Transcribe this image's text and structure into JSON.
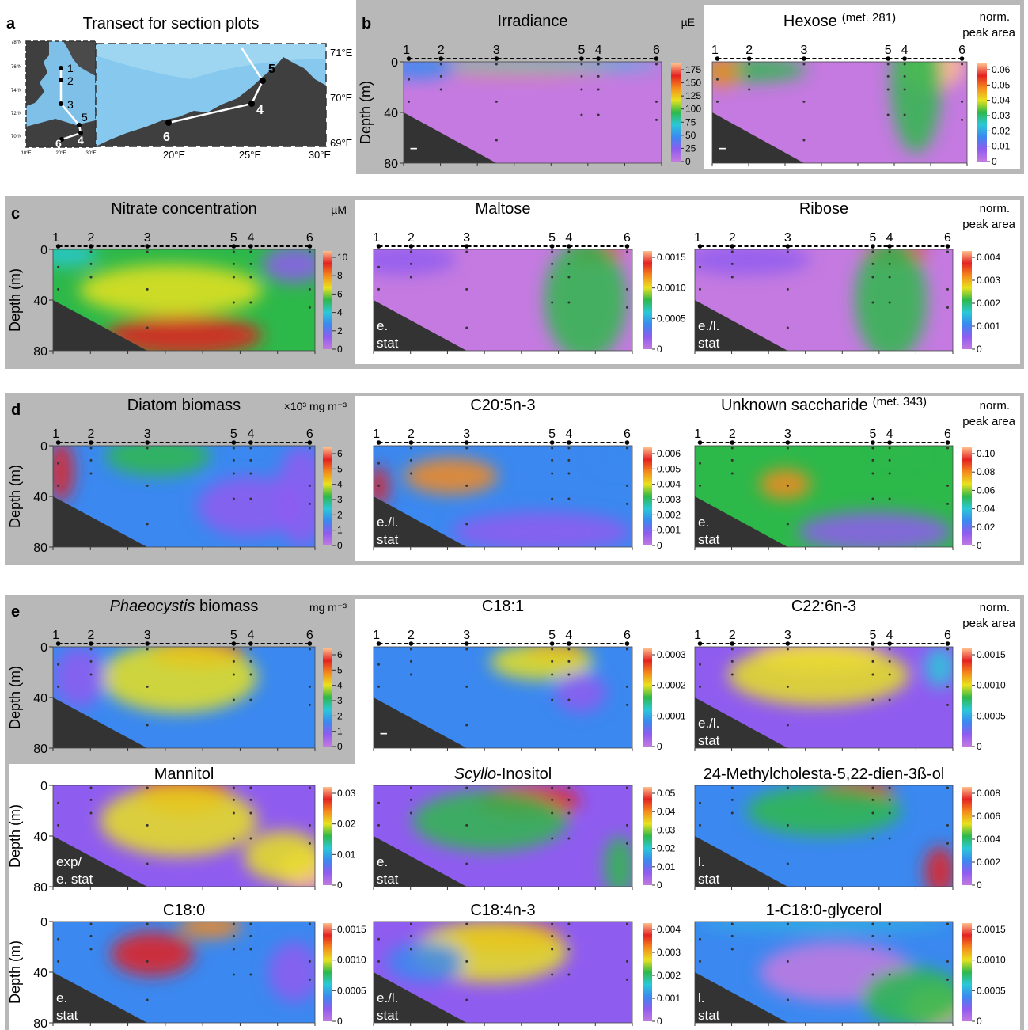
{
  "panel_letters": {
    "a": "a",
    "b": "b",
    "c": "c",
    "d": "d",
    "e": "e"
  },
  "map": {
    "title": "Transect for section plots",
    "inset_lat_labels": [
      "78°N",
      "76°N",
      "74°N",
      "72°N",
      "70°N"
    ],
    "inset_lon_labels": [
      "10°E",
      "20°E",
      "30°E"
    ],
    "main_lat_labels": [
      "71°E",
      "70°E",
      "69°E"
    ],
    "main_lon_labels": [
      "20°E",
      "25°E",
      "30°E"
    ],
    "inset_station_labels": [
      "1",
      "2",
      "3",
      "5",
      "4",
      "6"
    ],
    "main_station_labels": [
      "5",
      "4",
      "6"
    ]
  },
  "common": {
    "depth_label": "Depth (m)",
    "depth_ticks": [
      "0",
      "40",
      "80"
    ],
    "station_labels": [
      "1",
      "2",
      "3",
      "5",
      "4",
      "6"
    ],
    "norm_label_1": "norm.",
    "norm_label_2": "peak area"
  },
  "colors": {
    "gray_panel_bg": "#b8b8b8",
    "seafloor": "#333333",
    "colormap": [
      "#c47ae0",
      "#8f5cf0",
      "#3a88f0",
      "#2bc8d8",
      "#2db84a",
      "#e8e21e",
      "#f58a1c",
      "#e42222",
      "#ffbf8c"
    ]
  },
  "chart_data": [
    {
      "id": "irradiance",
      "type": "heatmap",
      "title": "Irradiance",
      "units": "µE",
      "colorbar_ticks": [
        "175",
        "150",
        "125",
        "100",
        "75",
        "50",
        "25",
        "0"
      ],
      "annotation": "–",
      "xlabel": "",
      "ylabel": "Depth (m)",
      "ylim": [
        80,
        0
      ]
    },
    {
      "id": "hexose",
      "type": "heatmap",
      "title": "Hexose",
      "title_suffix": "(met. 281)",
      "colorbar_ticks": [
        "0.06",
        "0.05",
        "0.04",
        "0.03",
        "0.02",
        "0.01",
        "0"
      ],
      "annotation": "–",
      "ylim": [
        80,
        0
      ]
    },
    {
      "id": "nitrate",
      "type": "heatmap",
      "title": "Nitrate concentration",
      "units": "µM",
      "colorbar_ticks": [
        "10",
        "8",
        "6",
        "4",
        "2",
        "0"
      ],
      "ylabel": "Depth (m)",
      "ylim": [
        80,
        0
      ]
    },
    {
      "id": "maltose",
      "type": "heatmap",
      "title": "Maltose",
      "colorbar_ticks": [
        "0.0015",
        "0.0010",
        "0.0005",
        "0"
      ],
      "annotation": [
        "e.",
        "stat"
      ],
      "ylim": [
        80,
        0
      ]
    },
    {
      "id": "ribose",
      "type": "heatmap",
      "title": "Ribose",
      "colorbar_ticks": [
        "0.004",
        "0.003",
        "0.002",
        "0.001",
        "0"
      ],
      "annotation": [
        "e./l.",
        "stat"
      ],
      "ylim": [
        80,
        0
      ]
    },
    {
      "id": "diatom",
      "type": "heatmap",
      "title": "Diatom biomass",
      "units": "×10³ mg m⁻³",
      "colorbar_ticks": [
        "6",
        "5",
        "4",
        "3",
        "2",
        "1",
        "0"
      ],
      "ylabel": "Depth (m)",
      "ylim": [
        80,
        0
      ]
    },
    {
      "id": "c205",
      "type": "heatmap",
      "title": "C20:5n-3",
      "colorbar_ticks": [
        "0.006",
        "0.005",
        "0.004",
        "0.003",
        "0.002",
        "0.001",
        "0"
      ],
      "annotation": [
        "e./l.",
        "stat"
      ],
      "ylim": [
        80,
        0
      ]
    },
    {
      "id": "unksacc",
      "type": "heatmap",
      "title": "Unknown saccharide",
      "title_suffix": "(met. 343)",
      "colorbar_ticks": [
        "0.10",
        "0.08",
        "0.06",
        "0.04",
        "0.02",
        "0"
      ],
      "annotation": [
        "e.",
        "stat"
      ],
      "ylim": [
        80,
        0
      ]
    },
    {
      "id": "phaeo",
      "type": "heatmap",
      "title": "Phaeocystis",
      "title_rest": "biomass",
      "units": "mg m⁻³",
      "colorbar_ticks": [
        "6",
        "5",
        "4",
        "3",
        "2",
        "1",
        "0"
      ],
      "ylabel": "Depth (m)",
      "ylim": [
        80,
        0
      ]
    },
    {
      "id": "c181",
      "type": "heatmap",
      "title": "C18:1",
      "colorbar_ticks": [
        "0.0003",
        "0.0002",
        "0.0001",
        "0"
      ],
      "annotation": "–",
      "ylim": [
        80,
        0
      ]
    },
    {
      "id": "c226",
      "type": "heatmap",
      "title": "C22:6n-3",
      "colorbar_ticks": [
        "0.0015",
        "0.0010",
        "0.0005",
        "0"
      ],
      "annotation": [
        "e./l.",
        "stat"
      ],
      "ylim": [
        80,
        0
      ]
    },
    {
      "id": "mannitol",
      "type": "heatmap",
      "title": "Mannitol",
      "colorbar_ticks": [
        "0.03",
        "0.02",
        "0.01",
        "0"
      ],
      "annotation": [
        "exp/",
        "e. stat"
      ],
      "ylabel": "Depth (m)",
      "ylim": [
        80,
        0
      ]
    },
    {
      "id": "scyllo",
      "type": "heatmap",
      "title": "Scyllo",
      "title_rest": "-Inositol",
      "colorbar_ticks": [
        "0.05",
        "0.04",
        "0.03",
        "0.02",
        "0.01",
        "0"
      ],
      "annotation": [
        "e.",
        "stat"
      ],
      "ylim": [
        80,
        0
      ]
    },
    {
      "id": "methylchol",
      "type": "heatmap",
      "title": "24-Methylcholesta-5,22-dien-3ß-ol",
      "colorbar_ticks": [
        "0.008",
        "0.006",
        "0.004",
        "0.002",
        "0"
      ],
      "annotation": [
        "l.",
        "stat"
      ],
      "ylim": [
        80,
        0
      ]
    },
    {
      "id": "c180",
      "type": "heatmap",
      "title": "C18:0",
      "colorbar_ticks": [
        "0.0015",
        "0.0010",
        "0.0005",
        "0"
      ],
      "annotation": [
        "e.",
        "stat"
      ],
      "ylabel": "Depth (m)",
      "ylim": [
        80,
        0
      ]
    },
    {
      "id": "c184",
      "type": "heatmap",
      "title": "C18:4n-3",
      "colorbar_ticks": [
        "0.004",
        "0.003",
        "0.002",
        "0.001",
        "0"
      ],
      "annotation": [
        "e./l.",
        "stat"
      ],
      "ylim": [
        80,
        0
      ]
    },
    {
      "id": "c180glyc",
      "type": "heatmap",
      "title": "1-C18:0-glycerol",
      "colorbar_ticks": [
        "0.0015",
        "0.0010",
        "0.0005",
        "0"
      ],
      "annotation": [
        "l.",
        "stat"
      ],
      "ylim": [
        80,
        0
      ]
    }
  ]
}
